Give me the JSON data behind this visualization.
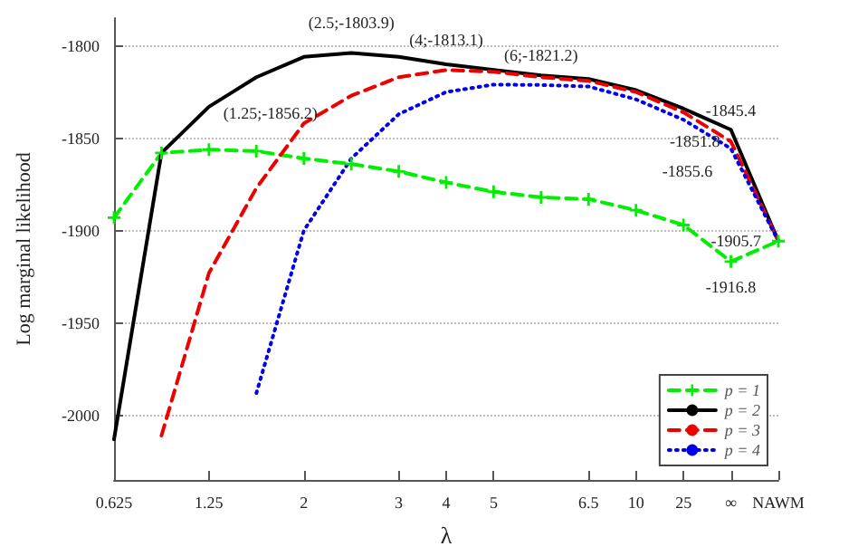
{
  "chart_data": {
    "type": "line",
    "xlabel": "λ",
    "ylabel": "Log marginal likelihood",
    "categories": [
      "0.625",
      null,
      "1.25",
      null,
      "2",
      null,
      "3",
      "4",
      "5",
      null,
      "6.5",
      "10",
      "25",
      "∞",
      "NAWM"
    ],
    "ylim": [
      -2035,
      -1785
    ],
    "yticks": [
      -2000,
      -1950,
      -1900,
      -1850,
      -1800
    ],
    "grid": "y",
    "legend": "bottom right",
    "series": [
      {
        "name": "p = 1",
        "color": "#00ee00",
        "line_style": "dashed",
        "marker": "cross",
        "values": [
          -1893,
          -1858,
          -1856.2,
          -1857,
          -1861,
          -1864,
          -1868,
          -1874,
          -1879,
          -1882,
          -1883,
          -1889,
          -1897,
          -1916.8,
          -1905.7
        ],
        "value_labels": [
          null,
          null,
          "(1.25;-1856.2)",
          null,
          null,
          null,
          null,
          null,
          null,
          null,
          null,
          null,
          null,
          "-1916.8",
          "-1905.7"
        ]
      },
      {
        "name": "p = 2",
        "color": "#000000",
        "line_style": "solid",
        "marker": "none",
        "values": [
          -2013,
          -1858,
          -1833,
          -1817,
          -1806,
          -1803.9,
          -1806,
          -1810,
          -1813,
          -1816,
          -1818,
          -1824,
          -1834,
          -1845.4,
          -1905.7
        ],
        "value_labels": [
          null,
          null,
          null,
          null,
          null,
          "(2.5;-1803.9)",
          null,
          null,
          null,
          null,
          null,
          null,
          null,
          "-1845.4",
          null
        ]
      },
      {
        "name": "p = 3",
        "color": "#ee0000",
        "line_style": "dashed",
        "marker": "none",
        "values": [
          null,
          -2011,
          -1923,
          -1877,
          -1842,
          -1827,
          -1817,
          -1813.1,
          -1814,
          -1817,
          -1819,
          -1825,
          -1836,
          -1851.8,
          -1905.7
        ],
        "value_labels": [
          null,
          null,
          null,
          null,
          null,
          null,
          null,
          "(4;-1813.1)",
          null,
          null,
          null,
          null,
          null,
          "-1851.8",
          null
        ]
      },
      {
        "name": "p = 4",
        "color": "#0000ee",
        "line_style": "dotted",
        "marker": "none",
        "values": [
          null,
          null,
          null,
          -1988,
          -1900,
          -1861,
          -1837,
          -1825,
          -1821,
          -1821.2,
          -1822,
          -1829,
          -1840,
          -1855.6,
          -1905.7
        ],
        "value_labels": [
          null,
          null,
          null,
          null,
          null,
          null,
          null,
          null,
          null,
          "(6;-1821.2)",
          null,
          null,
          null,
          "-1855.6",
          null
        ]
      }
    ]
  }
}
